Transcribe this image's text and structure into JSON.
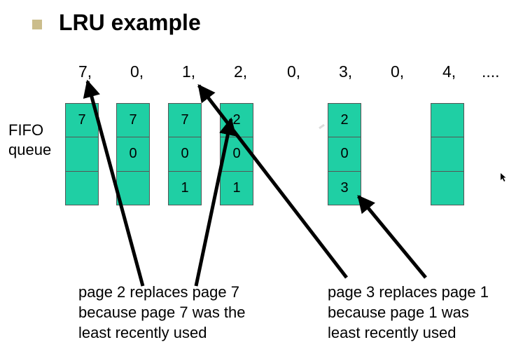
{
  "header": {
    "title": "LRU example"
  },
  "reference_string": [
    "7,",
    "0,",
    "1,",
    "2,",
    "0,",
    "3,",
    "0,",
    "4,",
    "...."
  ],
  "side_label_lines": [
    "FIFO",
    "queue"
  ],
  "frames": [
    [
      "7",
      "",
      ""
    ],
    [
      "7",
      "0",
      ""
    ],
    [
      "7",
      "0",
      "1"
    ],
    [
      "2",
      "0",
      "1"
    ],
    [
      "2",
      "0",
      "3"
    ],
    [
      "",
      "",
      ""
    ]
  ],
  "notes": {
    "left": [
      "page 2 replaces page 7",
      "because page 7 was the",
      "least recently used"
    ],
    "right": [
      "page 3 replaces page 1",
      "because page 1 was",
      "least recently used"
    ]
  },
  "colors": {
    "frame_fill": "#1fcfa4",
    "bullet": "#cbbd8c",
    "arrow": "#000000"
  }
}
